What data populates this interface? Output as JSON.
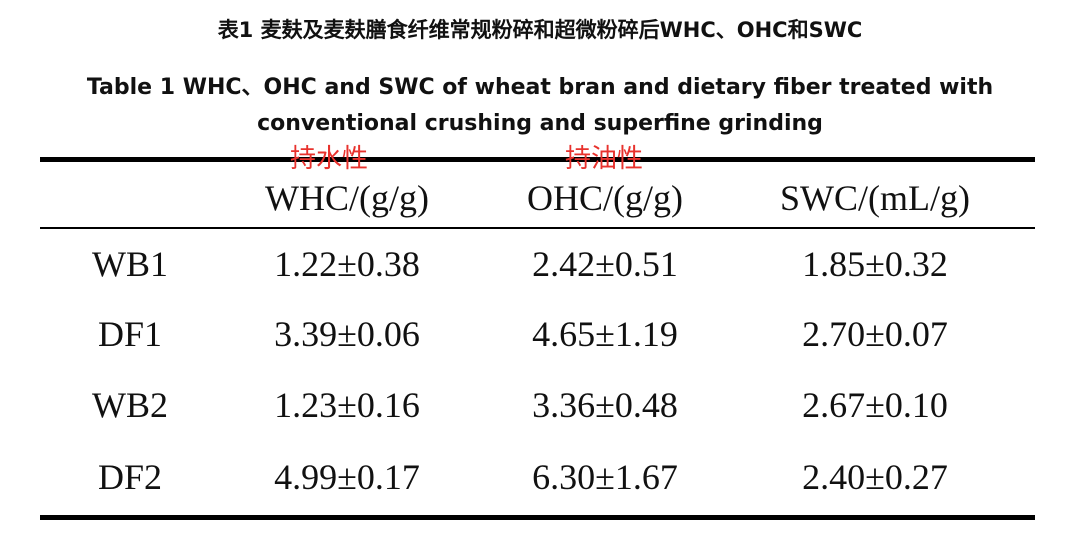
{
  "header": {
    "title": "表1 麦麸及麦麸膳食纤维常规粉碎和超微粉碎后WHC、OHC和SWC",
    "subtitle": "Table 1 WHC、OHC and SWC of wheat bran and dietary fiber treated with conventional crushing and superfine grinding"
  },
  "annotations": [
    "持水性",
    "持油性"
  ],
  "table": {
    "columns": [
      "WHC/(g/g)",
      "OHC/(g/g)",
      "SWC/(mL/g)"
    ],
    "rows": [
      [
        "WB1",
        "1.22±0.38",
        "2.42±0.51",
        "1.85±0.32"
      ],
      [
        "DF1",
        "3.39±0.06",
        "4.65±1.19",
        "2.70±0.07"
      ],
      [
        "WB2",
        "1.23±0.16",
        "3.36±0.48",
        "2.67±0.10"
      ],
      [
        "DF2",
        "4.99±0.17",
        "6.30±1.67",
        "2.40±0.27"
      ]
    ]
  }
}
